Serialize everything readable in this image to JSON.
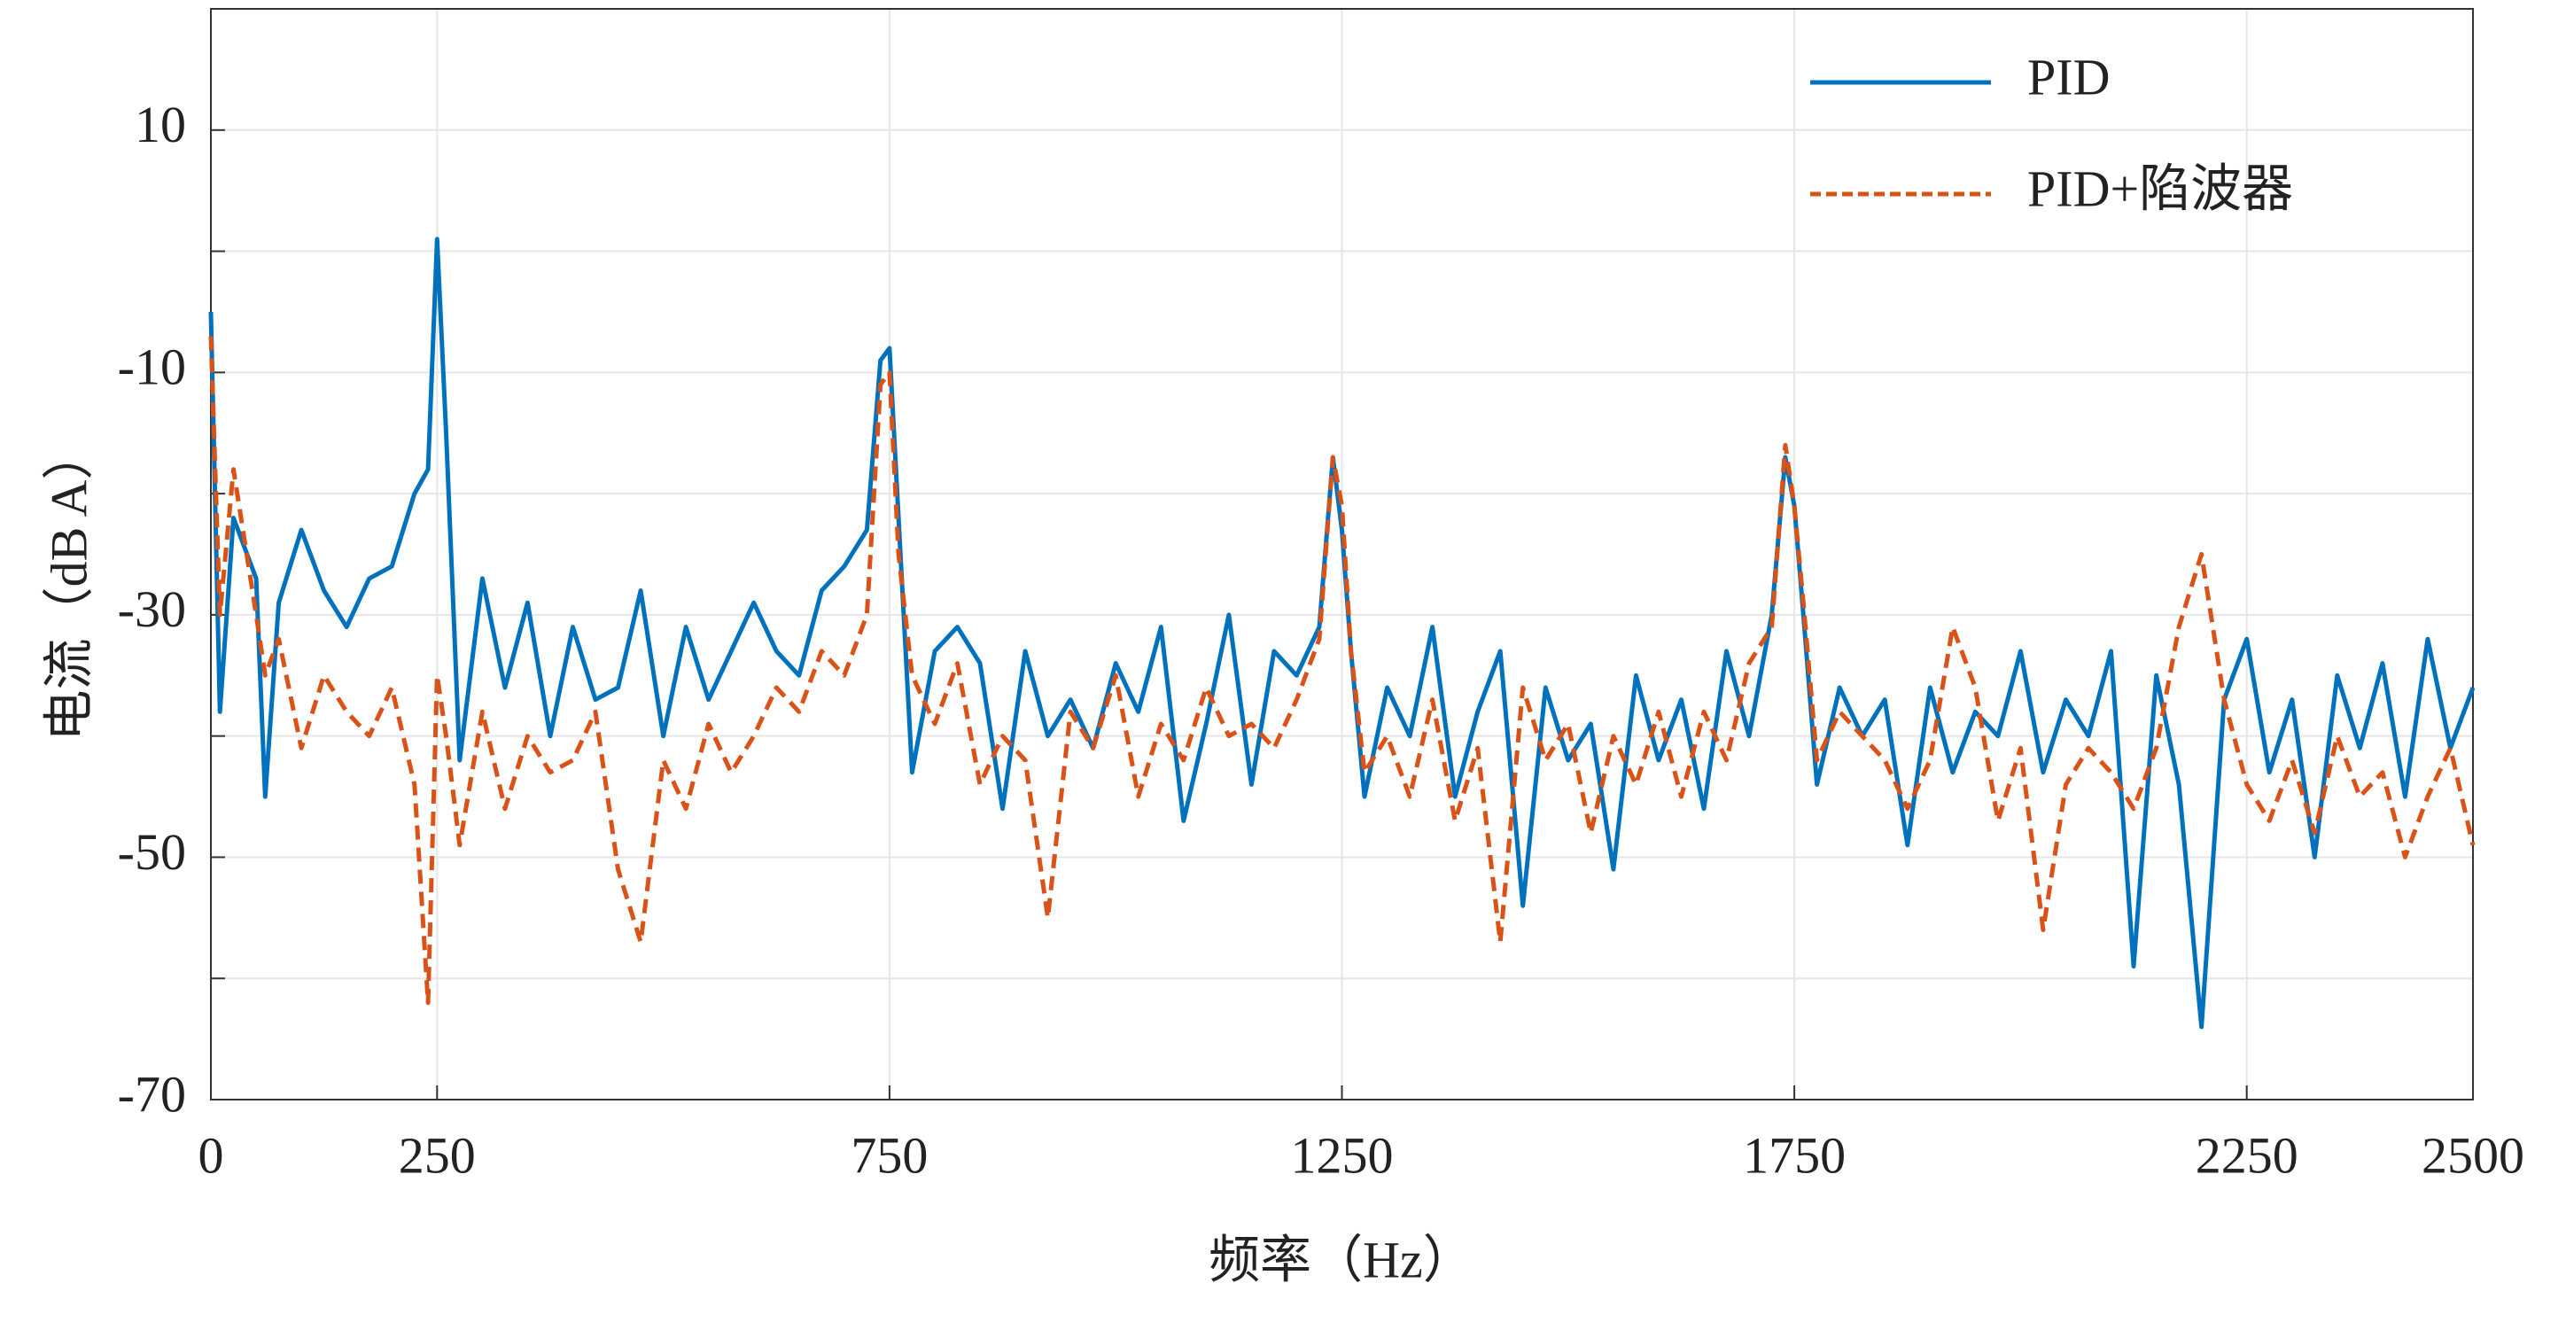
{
  "chart_data": {
    "type": "line",
    "xlabel": "频率（Hz）",
    "ylabel": "电流（dB A）",
    "xlim": [
      0,
      2500
    ],
    "xticks": [
      0,
      250,
      750,
      1250,
      1750,
      2250,
      2500
    ],
    "ylim": [
      -70,
      20
    ],
    "yticks": [
      10,
      -10,
      -30,
      -50,
      -70
    ],
    "yminorticks": [
      0,
      -20,
      -40,
      -60
    ],
    "grid": true,
    "legend": "upper right",
    "x": [
      0,
      10,
      25,
      50,
      60,
      75,
      100,
      125,
      150,
      175,
      200,
      225,
      240,
      250,
      260,
      275,
      300,
      325,
      350,
      375,
      400,
      425,
      450,
      475,
      500,
      525,
      550,
      575,
      600,
      625,
      650,
      675,
      700,
      725,
      740,
      750,
      760,
      775,
      800,
      825,
      850,
      875,
      900,
      925,
      950,
      975,
      1000,
      1025,
      1050,
      1075,
      1100,
      1125,
      1150,
      1175,
      1200,
      1225,
      1240,
      1250,
      1260,
      1275,
      1300,
      1325,
      1350,
      1375,
      1400,
      1425,
      1450,
      1475,
      1500,
      1525,
      1550,
      1575,
      1600,
      1625,
      1650,
      1675,
      1700,
      1725,
      1740,
      1750,
      1760,
      1775,
      1800,
      1825,
      1850,
      1875,
      1900,
      1925,
      1950,
      1975,
      2000,
      2025,
      2050,
      2075,
      2100,
      2125,
      2150,
      2175,
      2200,
      2225,
      2250,
      2275,
      2300,
      2325,
      2350,
      2375,
      2400,
      2425,
      2450,
      2475,
      2500
    ],
    "series": [
      {
        "name": "PID",
        "color": "#0072BD",
        "dash": false,
        "values": [
          -5,
          -38,
          -22,
          -27,
          -45,
          -29,
          -23,
          -28,
          -31,
          -27,
          -26,
          -20,
          -18,
          1,
          -15,
          -42,
          -27,
          -36,
          -29,
          -40,
          -31,
          -37,
          -36,
          -28,
          -40,
          -31,
          -37,
          -33,
          -29,
          -33,
          -35,
          -28,
          -26,
          -23,
          -9,
          -8,
          -22,
          -43,
          -33,
          -31,
          -34,
          -46,
          -33,
          -40,
          -37,
          -41,
          -34,
          -38,
          -31,
          -47,
          -39,
          -30,
          -44,
          -33,
          -35,
          -31,
          -17,
          -23,
          -33,
          -45,
          -36,
          -40,
          -31,
          -45,
          -38,
          -33,
          -54,
          -36,
          -42,
          -39,
          -51,
          -35,
          -42,
          -37,
          -46,
          -33,
          -40,
          -30,
          -17,
          -21,
          -30,
          -44,
          -36,
          -40,
          -37,
          -49,
          -36,
          -43,
          -38,
          -40,
          -33,
          -43,
          -37,
          -40,
          -33,
          -59,
          -35,
          -44,
          -64,
          -37,
          -32,
          -43,
          -37,
          -50,
          -35,
          -41,
          -34,
          -45,
          -32,
          -41,
          -36
        ]
      },
      {
        "name": "PID+陷波器",
        "color": "#D95319",
        "dash": true,
        "values": [
          -7,
          -30,
          -18,
          -30,
          -35,
          -32,
          -41,
          -35,
          -38,
          -40,
          -36,
          -44,
          -62,
          -35,
          -40,
          -49,
          -38,
          -46,
          -40,
          -43,
          -42,
          -38,
          -51,
          -57,
          -42,
          -46,
          -39,
          -43,
          -40,
          -36,
          -38,
          -33,
          -35,
          -30,
          -11,
          -10,
          -25,
          -35,
          -39,
          -34,
          -44,
          -40,
          -42,
          -55,
          -38,
          -41,
          -35,
          -45,
          -39,
          -42,
          -36,
          -40,
          -39,
          -41,
          -37,
          -32,
          -17,
          -21,
          -33,
          -43,
          -40,
          -45,
          -37,
          -47,
          -41,
          -57,
          -36,
          -42,
          -39,
          -48,
          -40,
          -44,
          -38,
          -45,
          -38,
          -42,
          -34,
          -31,
          -16,
          -21,
          -29,
          -42,
          -38,
          -40,
          -42,
          -46,
          -42,
          -31,
          -36,
          -47,
          -41,
          -56,
          -44,
          -41,
          -43,
          -46,
          -41,
          -31,
          -25,
          -37,
          -44,
          -47,
          -42,
          -48,
          -40,
          -45,
          -43,
          -50,
          -45,
          -41,
          -49
        ]
      }
    ]
  }
}
